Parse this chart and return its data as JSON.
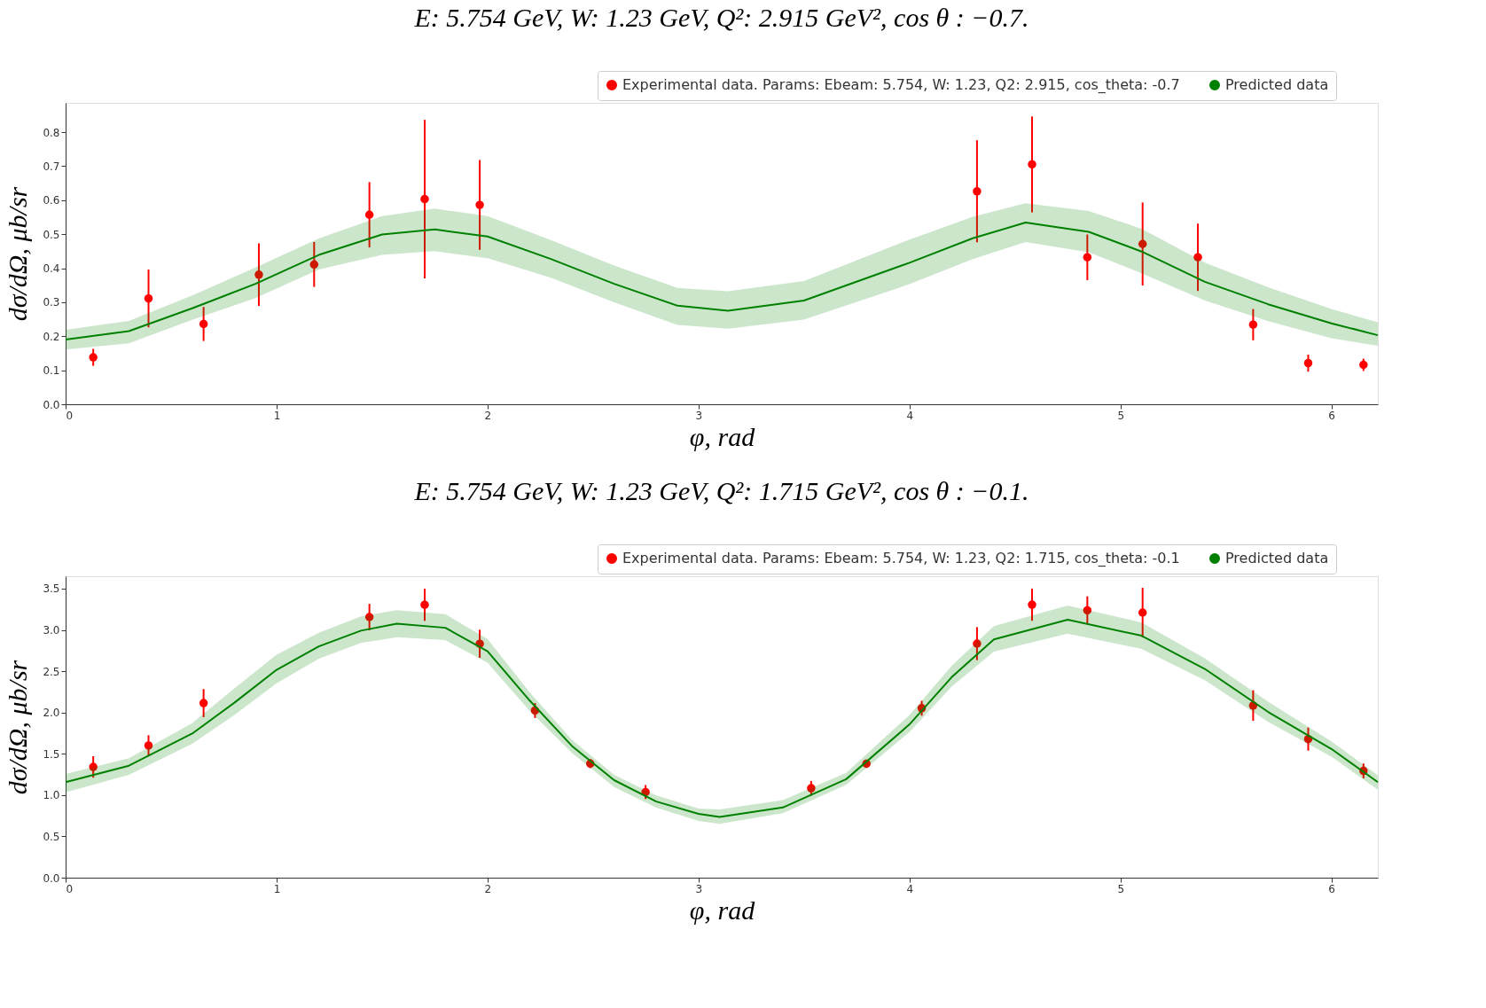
{
  "chart_data": [
    {
      "type": "scatter",
      "title": "E: 5.754 GeV, W: 1.23 GeV, Q²: 2.915 GeV², cos θ : −0.7.",
      "xlabel": "φ, rad",
      "ylabel": "dσ/dΩ, μb/sr",
      "xlim": [
        0,
        6.22
      ],
      "xticks": [
        0,
        1,
        2,
        3,
        4,
        5,
        6
      ],
      "ylim": [
        0,
        0.886
      ],
      "yticks": [
        {
          "value": 0,
          "label": "0.0"
        },
        0.1,
        0.2,
        0.3,
        0.4,
        0.5,
        0.6,
        0.7,
        0.8
      ],
      "grid": false,
      "legend": "top right",
      "series": [
        {
          "name": "Experimental data. Params: Ebeam: 5.754, W: 1.23, Q2: 2.915, cos_theta: -0.7",
          "marker": "circle",
          "color": "#ff0000",
          "x": [
            0.131,
            0.393,
            0.654,
            0.916,
            1.178,
            1.44,
            1.702,
            1.963,
            4.32,
            4.581,
            4.843,
            5.105,
            5.367,
            5.629,
            5.89,
            6.152
          ],
          "values": [
            0.138,
            0.311,
            0.236,
            0.381,
            0.411,
            0.557,
            0.603,
            0.586,
            0.626,
            0.705,
            0.432,
            0.471,
            0.432,
            0.234,
            0.121,
            0.116
          ],
          "errors": [
            0.025,
            0.085,
            0.05,
            0.092,
            0.066,
            0.096,
            0.233,
            0.132,
            0.15,
            0.141,
            0.067,
            0.122,
            0.099,
            0.046,
            0.025,
            0.018
          ]
        },
        {
          "name": "Predicted data",
          "type": "line",
          "color": "#008000",
          "x": [
            0,
            0.3,
            0.6,
            0.9,
            1.2,
            1.5,
            1.75,
            2.0,
            2.3,
            2.6,
            2.9,
            3.14,
            3.5,
            4.0,
            4.3,
            4.55,
            4.85,
            5.1,
            5.4,
            5.7,
            6.0,
            6.22
          ],
          "values": [
            0.19,
            0.215,
            0.282,
            0.354,
            0.439,
            0.499,
            0.514,
            0.493,
            0.427,
            0.354,
            0.29,
            0.275,
            0.305,
            0.416,
            0.488,
            0.534,
            0.507,
            0.449,
            0.36,
            0.294,
            0.238,
            0.203
          ],
          "lower": [
            0.161,
            0.179,
            0.248,
            0.312,
            0.396,
            0.439,
            0.45,
            0.429,
            0.372,
            0.3,
            0.233,
            0.222,
            0.249,
            0.353,
            0.427,
            0.477,
            0.447,
            0.385,
            0.305,
            0.244,
            0.194,
            0.172
          ],
          "upper": [
            0.219,
            0.245,
            0.32,
            0.402,
            0.487,
            0.553,
            0.575,
            0.553,
            0.483,
            0.408,
            0.342,
            0.332,
            0.362,
            0.484,
            0.551,
            0.591,
            0.568,
            0.516,
            0.416,
            0.344,
            0.28,
            0.241
          ]
        }
      ]
    },
    {
      "type": "scatter",
      "title": "E: 5.754 GeV, W: 1.23 GeV, Q²: 1.715 GeV², cos θ : −0.1.",
      "xlabel": "φ, rad",
      "ylabel": "dσ/dΩ, μb/sr",
      "xlim": [
        0,
        6.22
      ],
      "xticks": [
        0,
        1,
        2,
        3,
        4,
        5,
        6
      ],
      "ylim": [
        0,
        3.65
      ],
      "yticks": [
        {
          "value": 0,
          "label": "0.0"
        },
        0.5,
        {
          "value": 1,
          "label": "1.0"
        },
        1.5,
        {
          "value": 2,
          "label": "2.0"
        },
        2.5,
        {
          "value": 3,
          "label": "3.0"
        },
        3.5
      ],
      "grid": false,
      "legend": "top right",
      "series": [
        {
          "name": "Experimental data. Params: Ebeam: 5.754, W: 1.23, Q2: 1.715, cos_theta: -0.1",
          "marker": "circle",
          "color": "#ff0000",
          "x": [
            0.131,
            0.393,
            0.654,
            1.44,
            1.702,
            1.963,
            2.225,
            2.487,
            2.749,
            3.534,
            3.796,
            4.058,
            4.32,
            4.581,
            4.843,
            5.105,
            5.629,
            5.89,
            6.152
          ],
          "values": [
            1.341,
            1.6,
            2.114,
            3.156,
            3.305,
            2.832,
            2.024,
            1.381,
            1.037,
            1.083,
            1.38,
            2.052,
            2.834,
            3.306,
            3.237,
            3.21,
            2.085,
            1.678,
            1.293
          ],
          "errors": [
            0.13,
            0.125,
            0.17,
            0.16,
            0.195,
            0.17,
            0.09,
            0.055,
            0.085,
            0.088,
            0.05,
            0.09,
            0.2,
            0.195,
            0.17,
            0.3,
            0.185,
            0.14,
            0.09
          ]
        },
        {
          "name": "Predicted data",
          "type": "line",
          "color": "#008000",
          "x": [
            0,
            0.3,
            0.6,
            0.8,
            1.0,
            1.2,
            1.4,
            1.57,
            1.8,
            2.0,
            2.2,
            2.4,
            2.6,
            2.8,
            3.0,
            3.1,
            3.4,
            3.7,
            4.0,
            4.2,
            4.4,
            4.75,
            5.1,
            5.4,
            5.7,
            6.0,
            6.22
          ],
          "values": [
            1.157,
            1.356,
            1.745,
            2.119,
            2.517,
            2.8,
            2.991,
            3.076,
            3.026,
            2.742,
            2.144,
            1.595,
            1.181,
            0.922,
            0.773,
            0.735,
            0.85,
            1.193,
            1.856,
            2.428,
            2.885,
            3.123,
            2.93,
            2.528,
            2.007,
            1.559,
            1.157
          ],
          "lower": [
            1.032,
            1.246,
            1.62,
            1.969,
            2.353,
            2.652,
            2.841,
            2.911,
            2.876,
            2.602,
            2.019,
            1.51,
            1.097,
            0.847,
            0.688,
            0.652,
            0.78,
            1.124,
            1.764,
            2.313,
            2.738,
            2.954,
            2.77,
            2.39,
            1.887,
            1.466,
            1.065
          ],
          "upper": [
            1.256,
            1.446,
            1.87,
            2.293,
            2.7,
            2.966,
            3.165,
            3.24,
            3.19,
            2.891,
            2.243,
            1.67,
            1.246,
            0.997,
            0.837,
            0.826,
            0.94,
            1.27,
            1.97,
            2.565,
            3.045,
            3.297,
            3.09,
            2.656,
            2.13,
            1.65,
            1.24
          ]
        }
      ]
    }
  ]
}
